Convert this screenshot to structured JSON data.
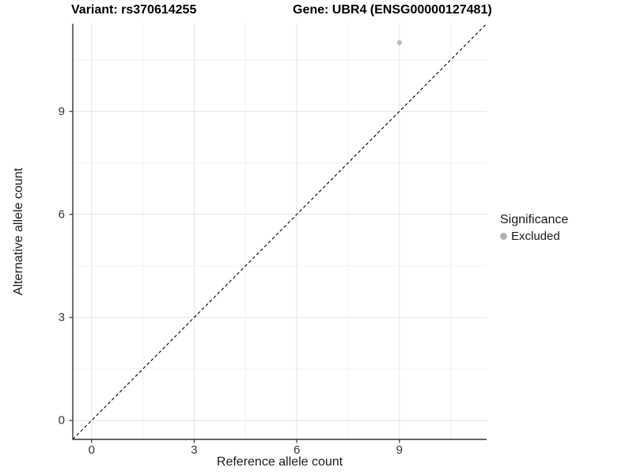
{
  "chart_data": {
    "type": "scatter",
    "title_left": "Variant: rs370614255",
    "title_right": "Gene: UBR4 (ENSG00000127481)",
    "xlabel": "Reference allele count",
    "ylabel": "Alternative allele count",
    "xlim": [
      -0.55,
      11.55
    ],
    "ylim": [
      -0.55,
      11.55
    ],
    "x_ticks": [
      "0",
      "3",
      "6",
      "9"
    ],
    "x_tick_values": [
      0,
      3,
      6,
      9
    ],
    "y_ticks": [
      "0",
      "3",
      "6",
      "9"
    ],
    "y_tick_values": [
      0,
      3,
      6,
      9
    ],
    "minor_tick_values": [
      1.5,
      4.5,
      7.5,
      10.5
    ],
    "grid": true,
    "background": "#ffffff",
    "axis_line_color": "#333333",
    "major_grid_color": "#e4e4e4",
    "minor_grid_color": "#f2f2f2",
    "reference_line": {
      "type": "identity",
      "style": "dashed",
      "color": "#000000"
    },
    "series": [
      {
        "name": "Excluded",
        "color": "#bdbdbd",
        "points": [
          [
            9,
            11
          ]
        ],
        "point_radius": 3.2
      }
    ],
    "legend": {
      "position": "right",
      "title": "Significance",
      "entries": [
        {
          "label": "Excluded",
          "color": "#b3b3b3"
        }
      ]
    }
  }
}
